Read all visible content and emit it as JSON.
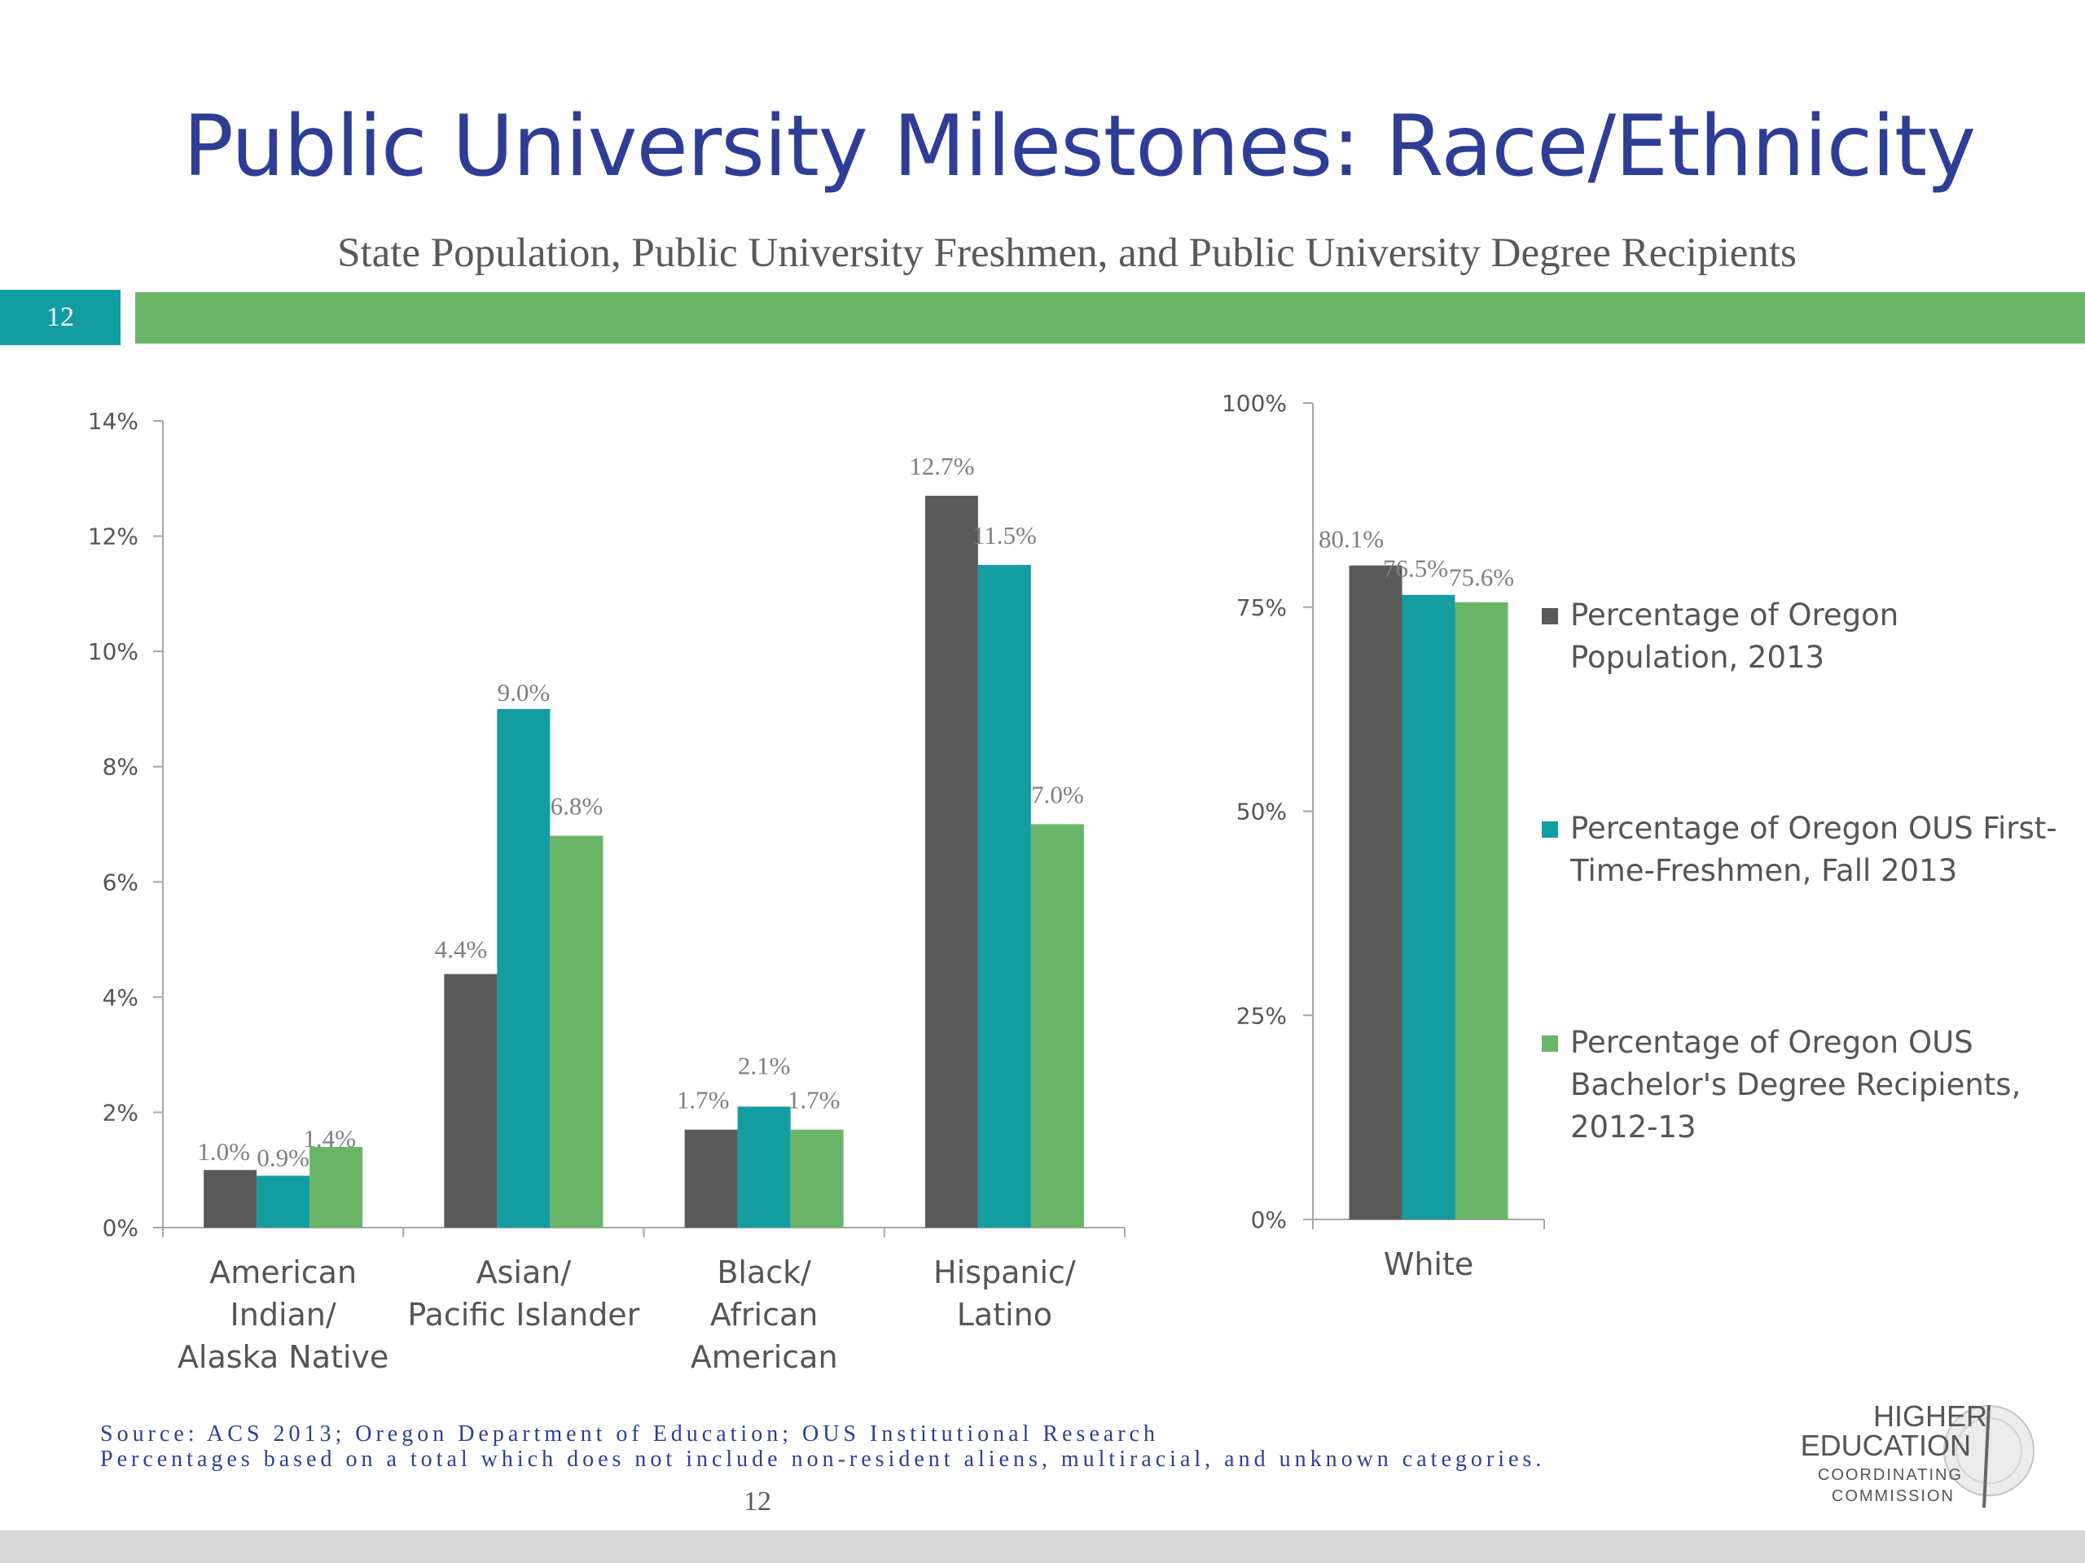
{
  "slide": {
    "title": "Public University Milestones: Race/Ethnicity",
    "subtitle": "State Population, Public University Freshmen, and Public University Degree Recipients",
    "slide_number": "12",
    "source_line1": "Source: ACS 2013; Oregon Department of Education; OUS Institutional Research",
    "source_line2": "Percentages  based on a total which does not include non-resident aliens, multiracial, and unknown categories.",
    "page_number": "12",
    "colors": {
      "title": "#2e3d96",
      "band_green": "#6ab568",
      "band_teal": "#139da1"
    }
  },
  "logo": {
    "line1": "HIGHER",
    "line2": "EDUCATION",
    "line3": "COORDINATING",
    "line4": "COMMISSION"
  },
  "legend": [
    {
      "label": "Percentage of Oregon Population, 2013",
      "color": "#595959"
    },
    {
      "label": "Percentage of Oregon OUS First-Time-Freshmen, Fall 2013",
      "color": "#139da1"
    },
    {
      "label": "Percentage of Oregon OUS Bachelor's Degree Recipients, 2012-13",
      "color": "#6ab568"
    }
  ],
  "chart_data": [
    {
      "type": "bar",
      "categories": [
        [
          "American",
          "Indian/",
          "Alaska Native"
        ],
        [
          "Asian/",
          "Pacific Islander"
        ],
        [
          "Black/",
          "African",
          "American"
        ],
        [
          "Hispanic/",
          "Latino"
        ]
      ],
      "series": [
        {
          "name": "Percentage of Oregon Population, 2013",
          "color": "#595959",
          "values": [
            1.0,
            4.4,
            1.7,
            12.7
          ],
          "labels": [
            "1.0%",
            "4.4%",
            "1.7%",
            "12.7%"
          ]
        },
        {
          "name": "Percentage of Oregon OUS First-Time-Freshmen, Fall 2013",
          "color": "#139da1",
          "values": [
            0.9,
            9.0,
            2.1,
            11.5
          ],
          "labels": [
            "0.9%",
            "9.0%",
            "2.1%",
            "11.5%"
          ]
        },
        {
          "name": "Percentage of Oregon OUS Bachelor's Degree Recipients, 2012-13",
          "color": "#6ab568",
          "values": [
            1.4,
            6.8,
            1.7,
            7.0
          ],
          "labels": [
            "1.4%",
            "6.8%",
            "1.7%",
            "7.0%"
          ]
        }
      ],
      "ylim": [
        0,
        14
      ],
      "yticks": [
        0,
        2,
        4,
        6,
        8,
        10,
        12,
        14
      ],
      "ytick_labels": [
        "0%",
        "2%",
        "4%",
        "6%",
        "8%",
        "10%",
        "12%",
        "14%"
      ],
      "grid": false
    },
    {
      "type": "bar",
      "categories": [
        [
          "White"
        ]
      ],
      "series": [
        {
          "name": "Percentage of Oregon Population, 2013",
          "color": "#595959",
          "values": [
            80.1
          ],
          "labels": [
            "80.1%"
          ]
        },
        {
          "name": "Percentage of Oregon OUS First-Time-Freshmen, Fall 2013",
          "color": "#139da1",
          "values": [
            76.5
          ],
          "labels": [
            "76.5%"
          ]
        },
        {
          "name": "Percentage of Oregon OUS Bachelor's Degree Recipients, 2012-13",
          "color": "#6ab568",
          "values": [
            75.6
          ],
          "labels": [
            "75.6%"
          ]
        }
      ],
      "ylim": [
        0,
        100
      ],
      "yticks": [
        0,
        25,
        50,
        75,
        100
      ],
      "ytick_labels": [
        "0%",
        "25%",
        "50%",
        "75%",
        "100%"
      ],
      "grid": false,
      "legend_position": "right"
    }
  ]
}
